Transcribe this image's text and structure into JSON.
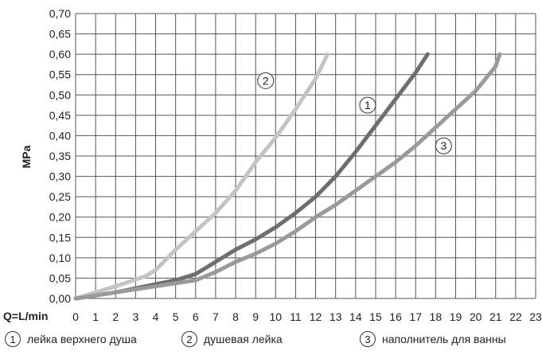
{
  "chart_data": {
    "type": "line",
    "xlabel": "Q=L/min",
    "ylabel": "MPa",
    "xlim": [
      0,
      23
    ],
    "ylim": [
      0,
      0.7
    ],
    "x_ticks": [
      "0",
      "1",
      "2",
      "3",
      "4",
      "5",
      "6",
      "7",
      "8",
      "9",
      "10",
      "11",
      "12",
      "13",
      "14",
      "15",
      "16",
      "17",
      "18",
      "19",
      "20",
      "21",
      "22",
      "23"
    ],
    "y_ticks": [
      "0,00",
      "0,05",
      "0,10",
      "0,15",
      "0,20",
      "0,25",
      "0,30",
      "0,35",
      "0,40",
      "0,45",
      "0,50",
      "0,55",
      "0,60",
      "0,65",
      "0,70"
    ],
    "grid": true,
    "legend_position": "bottom",
    "series": [
      {
        "name": "лейка верхнего душа",
        "marker": "1",
        "color": "#6e6e6e",
        "x": [
          0,
          2,
          4,
          5,
          6,
          7,
          8,
          9,
          10,
          11,
          12,
          13,
          14,
          15,
          16,
          17,
          17.6
        ],
        "y": [
          0,
          0.015,
          0.035,
          0.045,
          0.06,
          0.09,
          0.12,
          0.145,
          0.175,
          0.21,
          0.25,
          0.3,
          0.36,
          0.425,
          0.49,
          0.555,
          0.6
        ]
      },
      {
        "name": "душевая лейка",
        "marker": "2",
        "color": "#c4c4c4",
        "x": [
          0,
          2,
          3.5,
          4,
          5,
          6,
          7,
          8,
          9,
          10,
          11,
          12,
          12.6
        ],
        "y": [
          0,
          0.03,
          0.055,
          0.07,
          0.12,
          0.165,
          0.21,
          0.265,
          0.335,
          0.395,
          0.465,
          0.54,
          0.6
        ]
      },
      {
        "name": "наполнитель для ванны",
        "marker": "3",
        "color": "#9a9a9a",
        "x": [
          0,
          2,
          4,
          6,
          7,
          8,
          9,
          10,
          11,
          12,
          13,
          14,
          15,
          16,
          17,
          18,
          19,
          20,
          21,
          21.2
        ],
        "y": [
          0,
          0.015,
          0.03,
          0.045,
          0.065,
          0.09,
          0.11,
          0.135,
          0.165,
          0.2,
          0.23,
          0.265,
          0.3,
          0.335,
          0.375,
          0.42,
          0.465,
          0.51,
          0.57,
          0.6
        ]
      }
    ],
    "annotations": [
      "1",
      "2",
      "3"
    ]
  },
  "legend": [
    {
      "num": "1",
      "label": "лейка верхнего душа"
    },
    {
      "num": "2",
      "label": "душевая лейка"
    },
    {
      "num": "3",
      "label": "наполнитель для ванны"
    }
  ]
}
